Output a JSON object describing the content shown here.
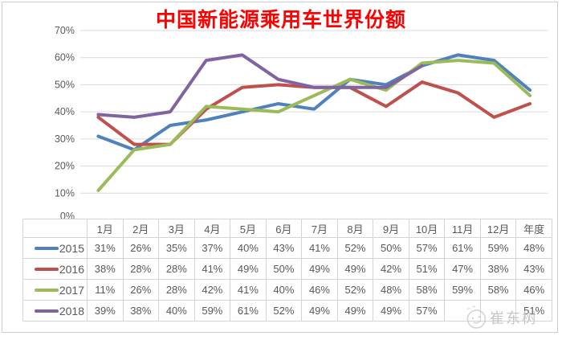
{
  "title": "中国新能源乘用车世界份额",
  "title_color": "#FF0000",
  "watermark": {
    "text": "崔东树",
    "icon": "smiley-face-doodle"
  },
  "chart_data": {
    "type": "line",
    "title": "中国新能源乘用车世界份额",
    "categories": [
      "1月",
      "2月",
      "3月",
      "4月",
      "5月",
      "6月",
      "7月",
      "8月",
      "9月",
      "10月",
      "11月",
      "12月",
      "年度"
    ],
    "series": [
      {
        "name": "2015",
        "color": "#4F81BD",
        "values": [
          31,
          26,
          35,
          37,
          40,
          43,
          41,
          52,
          50,
          57,
          61,
          59,
          48
        ]
      },
      {
        "name": "2016",
        "color": "#C0504D",
        "values": [
          38,
          28,
          28,
          41,
          49,
          50,
          49,
          49,
          42,
          51,
          47,
          38,
          43
        ]
      },
      {
        "name": "2017",
        "color": "#9BBB59",
        "values": [
          11,
          26,
          28,
          42,
          41,
          40,
          46,
          52,
          48,
          58,
          59,
          58,
          46
        ]
      },
      {
        "name": "2018",
        "color": "#8064A2",
        "values": [
          39,
          38,
          40,
          59,
          61,
          52,
          49,
          49,
          49,
          57,
          null,
          null,
          51
        ]
      }
    ],
    "ylim": [
      0,
      70
    ],
    "ytick_step": 10,
    "ytick_labels": [
      "0%",
      "10%",
      "20%",
      "30%",
      "40%",
      "50%",
      "60%",
      "70%"
    ],
    "grid": true,
    "gridline_color": "#D9D9D9",
    "legend_position": "table-rows-left"
  },
  "table": {
    "corner_label": "",
    "header": [
      "1月",
      "2月",
      "3月",
      "4月",
      "5月",
      "6月",
      "7月",
      "8月",
      "9月",
      "10月",
      "11月",
      "12月",
      "年度"
    ],
    "rows": [
      {
        "label": "2015",
        "values": [
          "31%",
          "26%",
          "35%",
          "37%",
          "40%",
          "43%",
          "41%",
          "52%",
          "50%",
          "57%",
          "61%",
          "59%",
          "48%"
        ]
      },
      {
        "label": "2016",
        "values": [
          "38%",
          "28%",
          "28%",
          "41%",
          "49%",
          "50%",
          "49%",
          "49%",
          "42%",
          "51%",
          "47%",
          "38%",
          "43%"
        ]
      },
      {
        "label": "2017",
        "values": [
          "11%",
          "26%",
          "28%",
          "42%",
          "41%",
          "40%",
          "46%",
          "52%",
          "48%",
          "58%",
          "59%",
          "58%",
          "46%"
        ]
      },
      {
        "label": "2018",
        "values": [
          "39%",
          "38%",
          "40%",
          "59%",
          "61%",
          "52%",
          "49%",
          "49%",
          "49%",
          "57%",
          "",
          "",
          "51%"
        ]
      }
    ]
  }
}
